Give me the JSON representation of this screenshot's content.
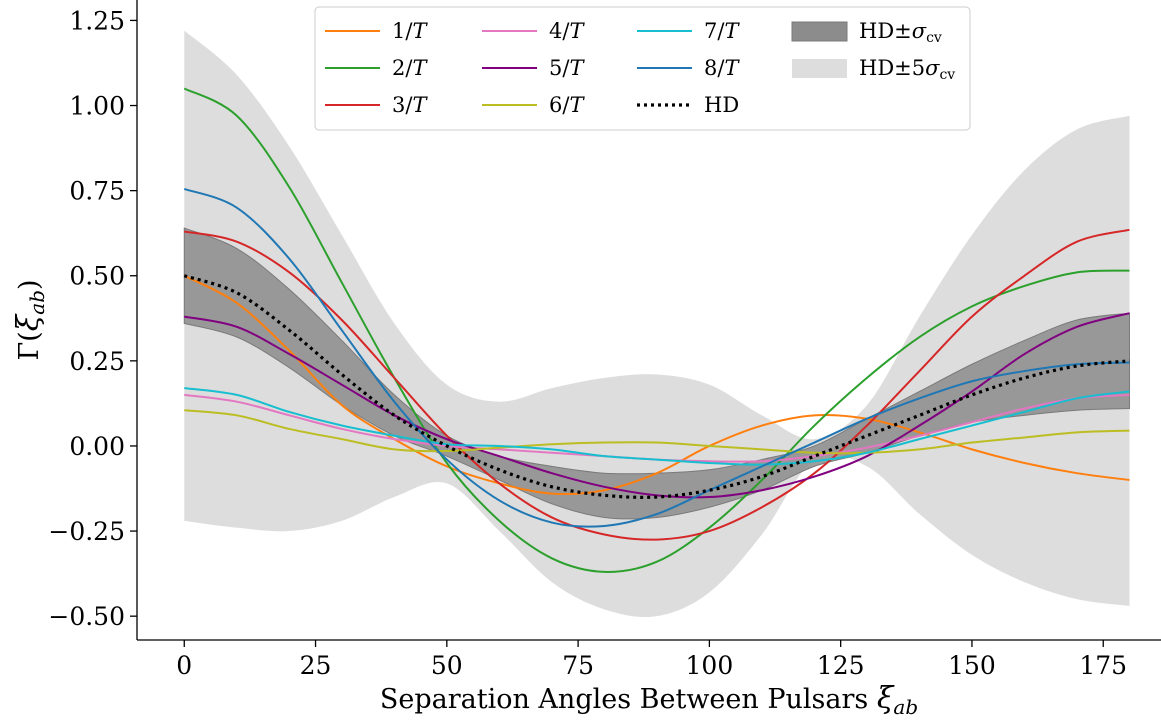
{
  "chart_data": {
    "type": "line",
    "xlabel": "Separation Angles Between Pulsars ξab",
    "ylabel": "Γ(ξab)",
    "xlim": [
      -9,
      186
    ],
    "ylim": [
      -0.57,
      1.31
    ],
    "xticks": [
      0,
      25,
      50,
      75,
      100,
      125,
      150,
      175
    ],
    "xtick_labels": [
      "0",
      "25",
      "50",
      "75",
      "100",
      "125",
      "150",
      "175"
    ],
    "yticks": [
      -0.5,
      -0.25,
      0.0,
      0.25,
      0.5,
      0.75,
      1.0,
      1.25
    ],
    "ytick_labels": [
      "−0.50",
      "−0.25",
      "0.00",
      "0.25",
      "0.50",
      "0.75",
      "1.00",
      "1.25"
    ],
    "x": [
      0,
      10,
      20,
      30,
      40,
      50,
      60,
      70,
      80,
      90,
      100,
      110,
      120,
      130,
      140,
      150,
      160,
      170,
      180
    ],
    "series": [
      {
        "name": "1/T",
        "color": "#ff7f0e",
        "values": [
          0.5,
          0.42,
          0.28,
          0.12,
          0.02,
          -0.06,
          -0.11,
          -0.14,
          -0.13,
          -0.08,
          0.0,
          0.06,
          0.09,
          0.08,
          0.04,
          -0.01,
          -0.05,
          -0.08,
          -0.1
        ]
      },
      {
        "name": "2/T",
        "color": "#2ca02c",
        "values": [
          1.05,
          0.97,
          0.76,
          0.48,
          0.2,
          -0.05,
          -0.22,
          -0.33,
          -0.37,
          -0.34,
          -0.24,
          -0.1,
          0.06,
          0.2,
          0.32,
          0.41,
          0.47,
          0.51,
          0.515
        ]
      },
      {
        "name": "3/T",
        "color": "#d62728",
        "values": [
          0.63,
          0.6,
          0.51,
          0.37,
          0.2,
          0.03,
          -0.11,
          -0.21,
          -0.26,
          -0.275,
          -0.25,
          -0.18,
          -0.08,
          0.06,
          0.22,
          0.38,
          0.5,
          0.6,
          0.635
        ]
      },
      {
        "name": "4/T",
        "color": "#e377c2",
        "values": [
          0.15,
          0.13,
          0.09,
          0.05,
          0.02,
          0.0,
          -0.01,
          -0.02,
          -0.03,
          -0.04,
          -0.045,
          -0.045,
          -0.03,
          -0.005,
          0.03,
          0.07,
          0.11,
          0.14,
          0.15
        ]
      },
      {
        "name": "5/T",
        "color": "#800080",
        "values": [
          0.38,
          0.35,
          0.27,
          0.18,
          0.09,
          0.02,
          -0.03,
          -0.08,
          -0.12,
          -0.145,
          -0.15,
          -0.13,
          -0.09,
          -0.03,
          0.06,
          0.16,
          0.27,
          0.35,
          0.39
        ]
      },
      {
        "name": "6/T",
        "color": "#bcbd22",
        "values": [
          0.105,
          0.09,
          0.05,
          0.02,
          -0.01,
          -0.015,
          -0.005,
          0.005,
          0.01,
          0.01,
          0.0,
          -0.01,
          -0.02,
          -0.02,
          -0.01,
          0.01,
          0.025,
          0.04,
          0.045
        ]
      },
      {
        "name": "7/T",
        "color": "#17becf",
        "values": [
          0.17,
          0.15,
          0.1,
          0.06,
          0.03,
          0.005,
          0.0,
          -0.01,
          -0.03,
          -0.04,
          -0.05,
          -0.055,
          -0.045,
          -0.02,
          0.02,
          0.06,
          0.1,
          0.14,
          0.16
        ]
      },
      {
        "name": "8/T",
        "color": "#1f77b4",
        "values": [
          0.755,
          0.7,
          0.55,
          0.34,
          0.13,
          -0.04,
          -0.16,
          -0.225,
          -0.235,
          -0.2,
          -0.13,
          -0.06,
          0.01,
          0.08,
          0.14,
          0.19,
          0.22,
          0.24,
          0.245
        ]
      },
      {
        "name": "HD",
        "color": "#000000",
        "dashed": true,
        "values": [
          0.5,
          0.45,
          0.34,
          0.21,
          0.09,
          0.0,
          -0.07,
          -0.12,
          -0.145,
          -0.15,
          -0.13,
          -0.09,
          -0.03,
          0.03,
          0.09,
          0.15,
          0.2,
          0.235,
          0.25
        ]
      }
    ],
    "bands": [
      {
        "name": "HD±σcv",
        "color": "#8c8c8c",
        "upper": [
          0.64,
          0.58,
          0.46,
          0.31,
          0.15,
          0.03,
          -0.03,
          -0.06,
          -0.08,
          -0.08,
          -0.07,
          -0.04,
          0.0,
          0.08,
          0.16,
          0.24,
          0.31,
          0.37,
          0.39
        ],
        "lower": [
          0.36,
          0.32,
          0.23,
          0.12,
          0.03,
          -0.03,
          -0.1,
          -0.17,
          -0.21,
          -0.21,
          -0.18,
          -0.13,
          -0.06,
          -0.02,
          0.03,
          0.07,
          0.09,
          0.105,
          0.11
        ]
      },
      {
        "name": "HD±5σcv",
        "color": "#dddddd",
        "upper": [
          1.22,
          1.09,
          0.88,
          0.62,
          0.36,
          0.18,
          0.13,
          0.17,
          0.2,
          0.21,
          0.18,
          0.09,
          0.02,
          0.12,
          0.38,
          0.62,
          0.81,
          0.93,
          0.97
        ],
        "lower": [
          -0.22,
          -0.24,
          -0.25,
          -0.22,
          -0.15,
          -0.11,
          -0.25,
          -0.4,
          -0.48,
          -0.5,
          -0.43,
          -0.26,
          -0.04,
          -0.06,
          -0.2,
          -0.32,
          -0.4,
          -0.45,
          -0.47
        ]
      }
    ],
    "legend": {
      "placement": "top-center",
      "columns": [
        [
          {
            "label": "1/T"
          },
          {
            "label": "2/T"
          },
          {
            "label": "3/T"
          }
        ],
        [
          {
            "label": "4/T"
          },
          {
            "label": "5/T"
          },
          {
            "label": "6/T"
          }
        ],
        [
          {
            "label": "7/T"
          },
          {
            "label": "8/T"
          },
          {
            "label": "HD"
          }
        ],
        [
          {
            "label": "HD±σcv"
          },
          {
            "label": "HD±5σcv"
          }
        ]
      ]
    },
    "grid": false
  }
}
